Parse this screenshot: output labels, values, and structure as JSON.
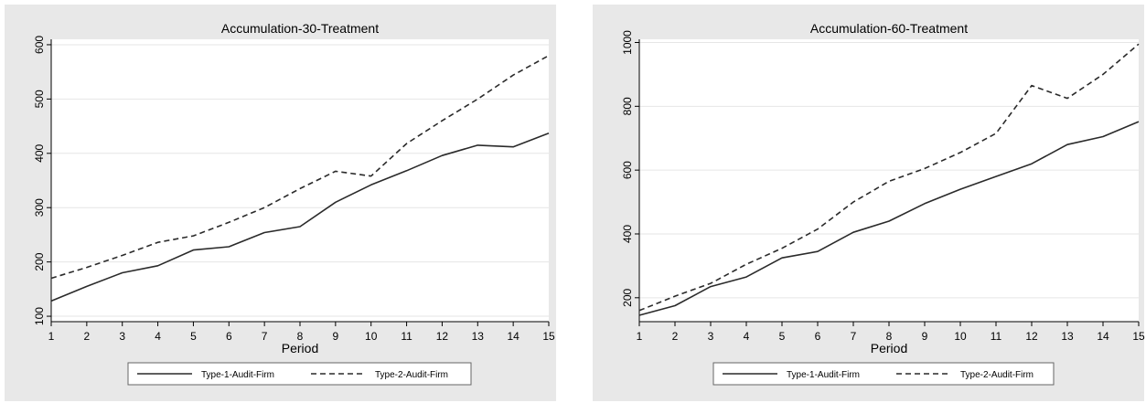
{
  "chart_data": [
    {
      "type": "line",
      "title": "Accumulation-30-Treatment",
      "xlabel": "Period",
      "ylabel": "",
      "x": [
        1,
        2,
        3,
        4,
        5,
        6,
        7,
        8,
        9,
        10,
        11,
        12,
        13,
        14,
        15
      ],
      "xlim": [
        1,
        15
      ],
      "ylim": [
        90,
        610
      ],
      "yticks": [
        100,
        200,
        300,
        400,
        500,
        600
      ],
      "grid": true,
      "legend_position": "bottom",
      "series": [
        {
          "name": "Type-1-Audit-Firm",
          "style": "solid",
          "values": [
            128,
            155,
            180,
            193,
            222,
            228,
            254,
            265,
            310,
            342,
            368,
            396,
            415,
            412,
            437
          ]
        },
        {
          "name": "Type-2-Audit-Firm",
          "style": "dashed",
          "values": [
            170,
            190,
            212,
            236,
            248,
            273,
            300,
            335,
            367,
            358,
            418,
            460,
            500,
            544,
            580
          ]
        }
      ]
    },
    {
      "type": "line",
      "title": "Accumulation-60-Treatment",
      "xlabel": "Period",
      "ylabel": "",
      "x": [
        1,
        2,
        3,
        4,
        5,
        6,
        7,
        8,
        9,
        10,
        11,
        12,
        13,
        14,
        15
      ],
      "xlim": [
        1,
        15
      ],
      "ylim": [
        125,
        1010
      ],
      "yticks": [
        200,
        400,
        600,
        800,
        1000
      ],
      "grid": true,
      "legend_position": "bottom",
      "series": [
        {
          "name": "Type-1-Audit-Firm",
          "style": "solid",
          "values": [
            145,
            175,
            235,
            265,
            325,
            345,
            405,
            440,
            495,
            540,
            580,
            620,
            680,
            705,
            752
          ]
        },
        {
          "name": "Type-2-Audit-Firm",
          "style": "dashed",
          "values": [
            160,
            205,
            245,
            305,
            355,
            415,
            500,
            565,
            605,
            655,
            715,
            865,
            825,
            900,
            995
          ]
        }
      ]
    }
  ]
}
